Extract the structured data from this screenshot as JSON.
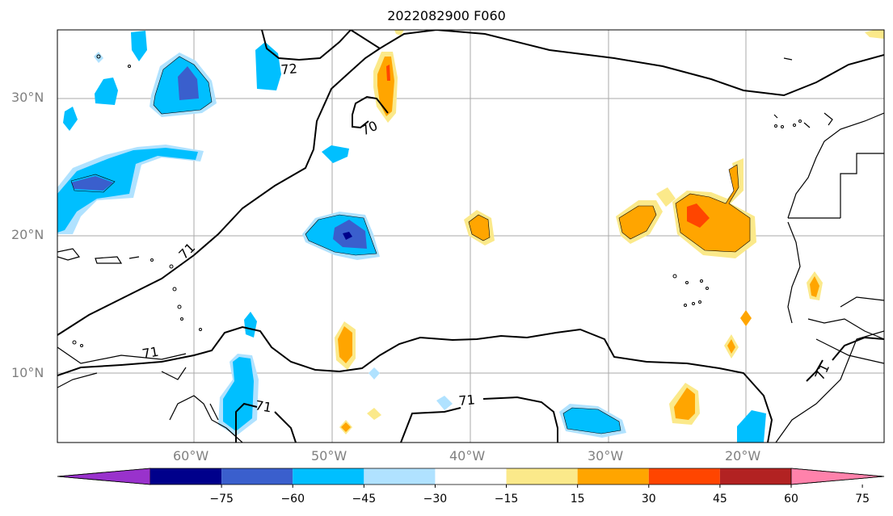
{
  "title": "2022082900 F060",
  "lat_labels": [
    "30°N",
    "20°N",
    "10°N"
  ],
  "lon_labels": [
    "60°W",
    "50°W",
    "40°W",
    "30°W",
    "20°W"
  ],
  "contour_labels": [
    "72",
    "70",
    "71",
    "71",
    "71",
    "71",
    "71"
  ],
  "colorbar": {
    "colors": [
      "#9932cc",
      "#00008b",
      "#3a5fcd",
      "#00bfff",
      "#b0e2ff",
      "#ffffff",
      "#fbe98a",
      "#ffa500",
      "#ff4500",
      "#b22222",
      "#ff82ab"
    ],
    "tick_labels": [
      "−75",
      "−60",
      "−45",
      "−30",
      "−15",
      "15",
      "30",
      "45",
      "60",
      "75"
    ]
  },
  "colors": {
    "gridline": "#aaaaaa",
    "coast": "#000000",
    "contour": "#000000"
  }
}
